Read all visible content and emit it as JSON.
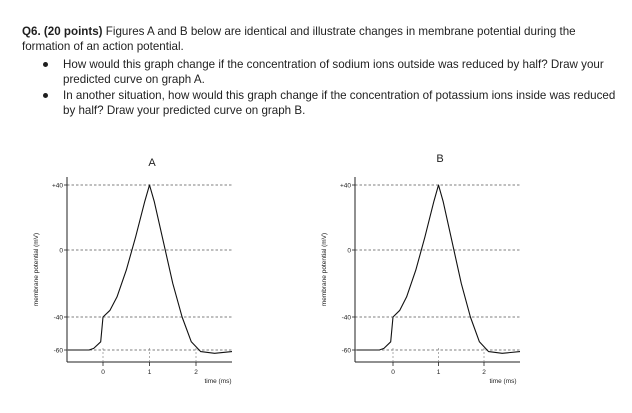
{
  "question": {
    "number": "Q6.",
    "points": "(20 points)",
    "intro": "Figures A and B below are identical and illustrate changes in membrane potential during the formation of an action potential.",
    "bullets": [
      "How would this graph change if the concentration of sodium ions outside was reduced by half? Draw your predicted curve on graph A.",
      "In another situation, how would this graph change if the concentration of potassium ions inside was reduced by half? Draw your predicted curve on graph B."
    ]
  },
  "figures": [
    {
      "label": "A",
      "ylabel": "membrane potential (mV)",
      "xlabel": "time (ms)",
      "ytick_labels": [
        "+40",
        "0",
        "-40",
        "-60"
      ],
      "xtick_labels": [
        "0",
        "1",
        "2"
      ]
    },
    {
      "label": "B",
      "ylabel": "membrane potential (mV)",
      "xlabel": "time (ms)",
      "ytick_labels": [
        "+40",
        "0",
        "-40",
        "-60"
      ],
      "xtick_labels": [
        "0",
        "1",
        "2"
      ]
    }
  ],
  "chart_data": [
    {
      "type": "line",
      "title": "A",
      "xlabel": "time (ms)",
      "ylabel": "membrane potential (mV)",
      "yticks": [
        40,
        0,
        -40,
        -60
      ],
      "xticks": [
        0,
        1,
        2
      ],
      "reference_lines_y": [
        40,
        0,
        -40,
        -60
      ],
      "x": [
        -0.8,
        -0.3,
        -0.2,
        -0.05,
        0,
        0.15,
        0.3,
        0.5,
        0.7,
        0.9,
        1.0,
        1.1,
        1.3,
        1.5,
        1.7,
        1.9,
        2.1,
        2.4,
        2.8
      ],
      "y": [
        -60,
        -60,
        -59,
        -55,
        -40,
        -36,
        -28,
        -12,
        8,
        30,
        40,
        30,
        5,
        -20,
        -40,
        -55,
        -61,
        -62,
        -61
      ]
    },
    {
      "type": "line",
      "title": "B",
      "xlabel": "time (ms)",
      "ylabel": "membrane potential (mV)",
      "yticks": [
        40,
        0,
        -40,
        -60
      ],
      "xticks": [
        0,
        1,
        2
      ],
      "reference_lines_y": [
        40,
        0,
        -40,
        -60
      ],
      "x": [
        -0.8,
        -0.3,
        -0.2,
        -0.05,
        0,
        0.15,
        0.3,
        0.5,
        0.7,
        0.9,
        1.0,
        1.1,
        1.3,
        1.5,
        1.7,
        1.9,
        2.1,
        2.4,
        2.8
      ],
      "y": [
        -60,
        -60,
        -59,
        -55,
        -40,
        -36,
        -28,
        -12,
        8,
        30,
        40,
        30,
        5,
        -20,
        -40,
        -55,
        -61,
        -62,
        -61
      ]
    }
  ]
}
